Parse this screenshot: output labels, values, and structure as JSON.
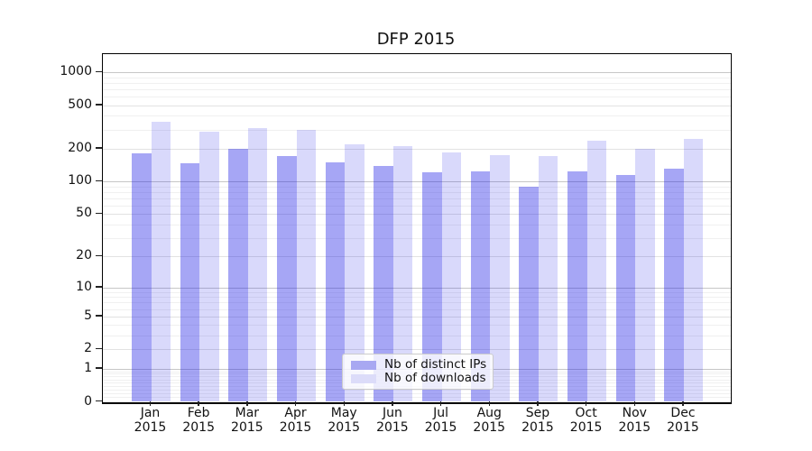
{
  "chart_data": {
    "type": "bar",
    "title": "DFP 2015",
    "x_year": "2015",
    "categories": [
      "Jan",
      "Feb",
      "Mar",
      "Apr",
      "May",
      "Jun",
      "Jul",
      "Aug",
      "Sep",
      "Oct",
      "Nov",
      "Dec"
    ],
    "series": [
      {
        "name": "Nb of distinct IPs",
        "values": [
          182,
          148,
          198,
          173,
          149,
          138,
          121,
          124,
          90,
          123,
          114,
          131
        ],
        "color": "rgba(20,20,230,0.38)",
        "legend_color": "#a8a8f2"
      },
      {
        "name": "Nb of downloads",
        "values": [
          351,
          288,
          310,
          298,
          220,
          212,
          186,
          174,
          173,
          237,
          200,
          245
        ],
        "color": "rgba(20,20,230,0.16)",
        "legend_color": "#dcdcf9"
      }
    ],
    "yscale": "log1p",
    "y_ticks": [
      0,
      1,
      2,
      5,
      10,
      20,
      50,
      100,
      200,
      500,
      1000
    ],
    "ylim": [
      0,
      1460
    ],
    "xlabel": "",
    "ylabel": "",
    "grid": true,
    "legend_position": "lower center"
  }
}
